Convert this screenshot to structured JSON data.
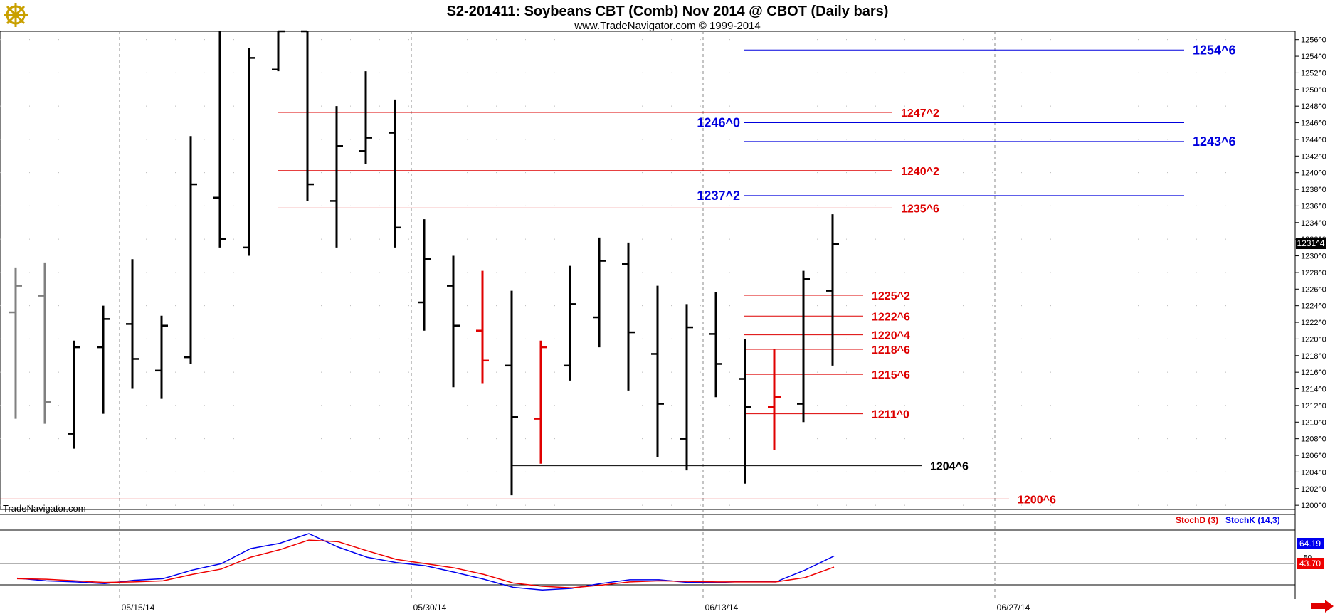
{
  "header": {
    "title": "S2-201411:  Soybeans CBT (Comb) Nov 2014 @ CBOT  (Daily bars)",
    "subtitle": "www.TradeNavigator.com © 1999-2014"
  },
  "watermark": "TradeNavigator.com",
  "logo_icon": "ship-wheel-icon",
  "colors": {
    "up_bar": "#000000",
    "red_bar": "#e00000",
    "gray_bar": "#808080",
    "blue_level": "#0000dd",
    "red_level": "#dd0000",
    "stoch_k": "#0000ee",
    "stoch_d": "#ee0000"
  },
  "chart_data": [
    {
      "type": "ohlc",
      "y_axis": {
        "min": 1199.5,
        "max": 1257.0,
        "ticks": [
          "1200^0",
          "1202^0",
          "1204^0",
          "1206^0",
          "1208^0",
          "1210^0",
          "1212^0",
          "1214^0",
          "1216^0",
          "1218^0",
          "1220^0",
          "1222^0",
          "1224^0",
          "1226^0",
          "1228^0",
          "1230^0",
          "1232^0",
          "1234^0",
          "1236^0",
          "1238^0",
          "1240^0",
          "1242^0",
          "1244^0",
          "1246^0",
          "1248^0",
          "1250^0",
          "1252^0",
          "1254^0",
          "1256^0"
        ],
        "tick_values": [
          1200,
          1202,
          1204,
          1206,
          1208,
          1210,
          1212,
          1214,
          1216,
          1218,
          1220,
          1222,
          1224,
          1226,
          1228,
          1230,
          1232,
          1234,
          1236,
          1238,
          1240,
          1242,
          1244,
          1246,
          1248,
          1250,
          1252,
          1254,
          1256
        ]
      },
      "last_price_label": "1231^4",
      "last_price": 1231.5,
      "x_axis": {
        "labels": [
          "05/15/14",
          "05/30/14",
          "06/13/14",
          "06/27/14"
        ],
        "label_bar_index": [
          4,
          14,
          24,
          34
        ]
      },
      "bars": [
        {
          "o": 1223.2,
          "h": 1228.6,
          "l": 1210.4,
          "c": 1226.4,
          "color": "gray"
        },
        {
          "o": 1225.2,
          "h": 1229.2,
          "l": 1209.8,
          "c": 1212.4,
          "color": "gray"
        },
        {
          "o": 1208.6,
          "h": 1219.8,
          "l": 1206.8,
          "c": 1219.0,
          "color": "black"
        },
        {
          "o": 1219.0,
          "h": 1224.0,
          "l": 1211.0,
          "c": 1222.4,
          "color": "black"
        },
        {
          "o": 1221.8,
          "h": 1229.6,
          "l": 1214.0,
          "c": 1217.6,
          "color": "black"
        },
        {
          "o": 1216.2,
          "h": 1222.8,
          "l": 1212.8,
          "c": 1221.6,
          "color": "black"
        },
        {
          "o": 1217.8,
          "h": 1244.4,
          "l": 1217.0,
          "c": 1238.6,
          "color": "black"
        },
        {
          "o": 1237.0,
          "h": 1257.0,
          "l": 1231.0,
          "c": 1232.0,
          "color": "black"
        },
        {
          "o": 1231.0,
          "h": 1255.0,
          "l": 1230.0,
          "c": 1253.8,
          "color": "black"
        },
        {
          "o": 1252.4,
          "h": 1257.0,
          "l": 1252.2,
          "c": 1257.0,
          "color": "black"
        },
        {
          "o": 1257.0,
          "h": 1257.0,
          "l": 1236.6,
          "c": 1238.6,
          "color": "black"
        },
        {
          "o": 1236.6,
          "h": 1248.0,
          "l": 1231.0,
          "c": 1243.2,
          "color": "black"
        },
        {
          "o": 1242.6,
          "h": 1252.2,
          "l": 1241.0,
          "c": 1244.2,
          "color": "black"
        },
        {
          "o": 1244.8,
          "h": 1248.8,
          "l": 1231.0,
          "c": 1233.4,
          "color": "black"
        },
        {
          "o": 1224.4,
          "h": 1234.4,
          "l": 1221.0,
          "c": 1229.6,
          "color": "black"
        },
        {
          "o": 1226.4,
          "h": 1230.0,
          "l": 1214.2,
          "c": 1221.6,
          "color": "black"
        },
        {
          "o": 1221.0,
          "h": 1228.2,
          "l": 1214.6,
          "c": 1217.4,
          "color": "red"
        },
        {
          "o": 1216.8,
          "h": 1225.8,
          "l": 1201.2,
          "c": 1210.6,
          "color": "black"
        },
        {
          "o": 1210.4,
          "h": 1219.8,
          "l": 1205.0,
          "c": 1219.0,
          "color": "red"
        },
        {
          "o": 1216.8,
          "h": 1228.8,
          "l": 1215.0,
          "c": 1224.2,
          "color": "black"
        },
        {
          "o": 1222.6,
          "h": 1232.2,
          "l": 1219.0,
          "c": 1229.4,
          "color": "black"
        },
        {
          "o": 1229.0,
          "h": 1231.6,
          "l": 1213.8,
          "c": 1220.8,
          "color": "black"
        },
        {
          "o": 1218.2,
          "h": 1226.4,
          "l": 1205.8,
          "c": 1212.2,
          "color": "black"
        },
        {
          "o": 1208.0,
          "h": 1224.2,
          "l": 1204.2,
          "c": 1221.4,
          "color": "black"
        },
        {
          "o": 1220.6,
          "h": 1225.6,
          "l": 1213.0,
          "c": 1217.0,
          "color": "black"
        },
        {
          "o": 1215.2,
          "h": 1220.0,
          "l": 1202.6,
          "c": 1211.8,
          "color": "black"
        },
        {
          "o": 1211.8,
          "h": 1218.8,
          "l": 1206.6,
          "c": 1213.0,
          "color": "red"
        },
        {
          "o": 1212.2,
          "h": 1228.2,
          "l": 1210.0,
          "c": 1227.2,
          "color": "black"
        },
        {
          "o": 1225.8,
          "h": 1235.0,
          "l": 1216.8,
          "c": 1231.4,
          "color": "black"
        }
      ],
      "levels": [
        {
          "label": "1254^6",
          "value": 1254.75,
          "color": "blue",
          "x_start_bar": 25,
          "x_end_bar": 40
        },
        {
          "label": "1246^0",
          "value": 1246.0,
          "color": "blue",
          "x_start_bar": 25,
          "x_end_bar": 40,
          "label_side": "left"
        },
        {
          "label": "1243^6",
          "value": 1243.75,
          "color": "blue",
          "x_start_bar": 25,
          "x_end_bar": 40
        },
        {
          "label": "1237^2",
          "value": 1237.25,
          "color": "blue",
          "x_start_bar": 25,
          "x_end_bar": 40,
          "label_side": "left"
        },
        {
          "label": "1247^2",
          "value": 1247.25,
          "color": "red",
          "x_start_bar": 9,
          "x_end_bar": 30
        },
        {
          "label": "1240^2",
          "value": 1240.25,
          "color": "red",
          "x_start_bar": 9,
          "x_end_bar": 30
        },
        {
          "label": "1235^6",
          "value": 1235.75,
          "color": "red",
          "x_start_bar": 9,
          "x_end_bar": 30
        },
        {
          "label": "1225^2",
          "value": 1225.25,
          "color": "red",
          "x_start_bar": 25,
          "x_end_bar": 29
        },
        {
          "label": "1222^6",
          "value": 1222.75,
          "color": "red",
          "x_start_bar": 25,
          "x_end_bar": 29
        },
        {
          "label": "1220^4",
          "value": 1220.5,
          "color": "red",
          "x_start_bar": 25,
          "x_end_bar": 29
        },
        {
          "label": "1218^6",
          "value": 1218.75,
          "color": "red",
          "x_start_bar": 25,
          "x_end_bar": 29
        },
        {
          "label": "1215^6",
          "value": 1215.75,
          "color": "red",
          "x_start_bar": 25,
          "x_end_bar": 29
        },
        {
          "label": "1211^0",
          "value": 1211.0,
          "color": "red",
          "x_start_bar": 25,
          "x_end_bar": 29
        },
        {
          "label": "1204^6",
          "value": 1204.75,
          "color": "black",
          "x_start_bar": 17,
          "x_end_bar": 31
        },
        {
          "label": "1200^6",
          "value": 1200.75,
          "color": "red",
          "x_start_bar": -1,
          "x_end_bar": 34
        }
      ]
    },
    {
      "type": "line",
      "title": "",
      "legend": [
        {
          "name": "StochD (3)",
          "color": "red"
        },
        {
          "name": "StochK (14,3)",
          "color": "blue"
        }
      ],
      "y_range": [
        0,
        100
      ],
      "reference_line": 50,
      "reference_label": "50",
      "last_k_label": "64.19",
      "last_d_label": "43.70",
      "series": [
        {
          "name": "StochK (14,3)",
          "values": [
            23,
            18,
            16,
            13,
            19,
            22,
            38,
            50,
            78,
            88,
            106,
            81,
            62,
            52,
            46,
            34,
            21,
            6,
            1,
            4,
            13,
            20,
            20,
            15,
            15,
            17,
            16,
            38,
            64.19
          ]
        },
        {
          "name": "StochD (3)",
          "values": [
            22,
            21,
            18,
            15,
            16,
            18,
            30,
            40,
            62,
            76,
            94,
            91,
            74,
            58,
            50,
            42,
            30,
            14,
            8,
            5,
            10,
            16,
            18,
            17,
            16,
            16,
            16,
            24,
            43.7
          ]
        }
      ]
    }
  ]
}
